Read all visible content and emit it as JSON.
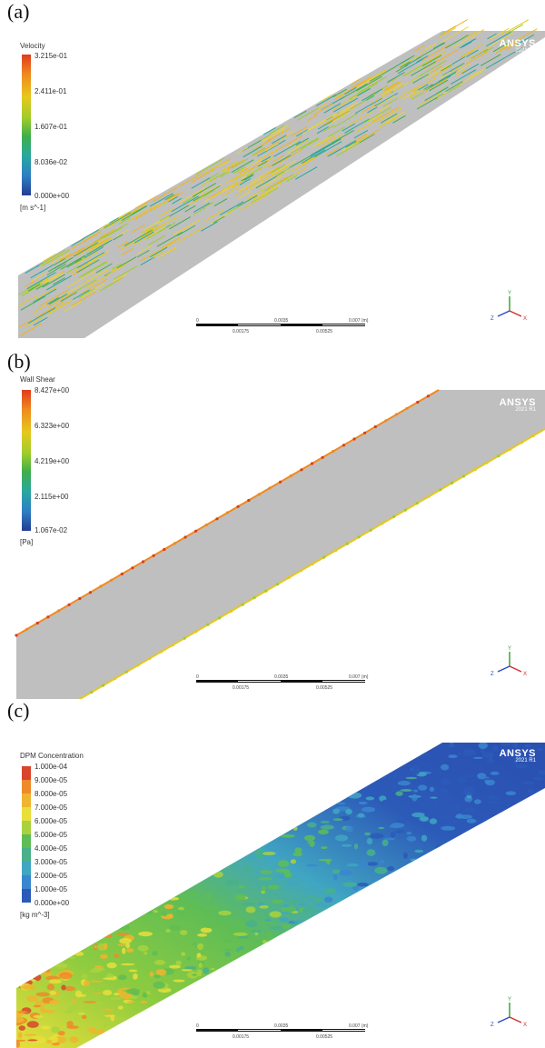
{
  "panels": [
    {
      "label": "(a)",
      "title": "Velocity",
      "ticks": [
        "3.215e-01",
        "2.411e-01",
        "1.607e-01",
        "8.036e-02",
        "0.000e+00"
      ],
      "units": "[m s^-1]",
      "colormap": [
        "#e03b1e",
        "#f08a1e",
        "#e6c81e",
        "#9fcd2a",
        "#3fae4a",
        "#2aa7a0",
        "#2d7fc4",
        "#243c94"
      ],
      "field": "velocity vectors"
    },
    {
      "label": "(b)",
      "title": "Wall Shear",
      "ticks": [
        "8.427e+00",
        "6.323e+00",
        "4.219e+00",
        "2.115e+00",
        "1.067e-02"
      ],
      "units": "[Pa]",
      "colormap": [
        "#e03b1e",
        "#f08a1e",
        "#e6c81e",
        "#9fcd2a",
        "#3fae4a",
        "#2aa7a0",
        "#2d7fc4",
        "#243c94"
      ],
      "field": "wall shear"
    },
    {
      "label": "(c)",
      "title": "DPM Concentration",
      "ticks": [
        "1.000e-04",
        "9.000e-05",
        "8.000e-05",
        "7.000e-05",
        "6.000e-05",
        "5.000e-05",
        "4.000e-05",
        "3.000e-05",
        "2.000e-05",
        "1.000e-05",
        "0.000e+00"
      ],
      "units": "[kg m^-3]",
      "colormap": [
        "#d8452b",
        "#ee8a2a",
        "#efb52f",
        "#e8df3a",
        "#a9d23e",
        "#5fbd55",
        "#49b08a",
        "#40a6c2",
        "#3a86cf",
        "#2c5ab8"
      ],
      "field": "DPM concentration"
    }
  ],
  "ansys": {
    "brand": "ANSYS",
    "version": "2021 R1"
  },
  "scalebar": {
    "top_labels": [
      "0",
      "0.0035",
      "0.007 (m)"
    ],
    "bottom_labels": [
      "0.00175",
      "0.00525"
    ]
  },
  "axes": {
    "y": "Y",
    "z": "Z",
    "x": "X"
  }
}
